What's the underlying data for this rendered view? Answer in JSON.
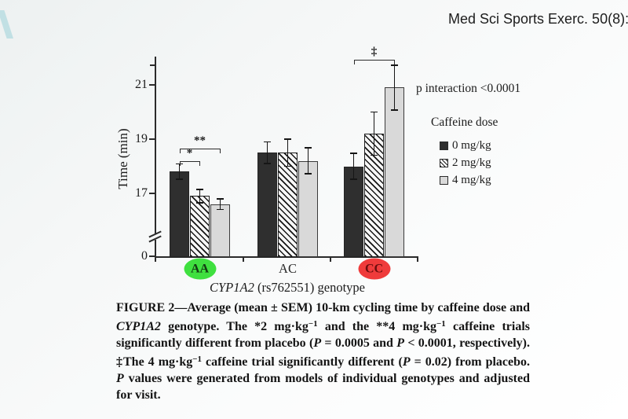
{
  "header": {
    "journal_ref": "Med Sci Sports Exerc. 50(8):"
  },
  "colors": {
    "bar_dark": "#2f2f2f",
    "bar_light": "#d9d9d9",
    "hatch_foreground": "#161616",
    "highlight_green": "#3fe03f",
    "highlight_red": "#ef3b3b",
    "corner_accent": "#b9dde2",
    "axis": "#2b2b2b"
  },
  "chart_data": {
    "type": "bar",
    "categories": [
      "AA",
      "AC",
      "CC"
    ],
    "series": [
      {
        "name": "0 mg/kg",
        "style": "solid-dark",
        "values": [
          17.8,
          18.5,
          18.0
        ],
        "sem": [
          0.3,
          0.42,
          0.5
        ]
      },
      {
        "name": "2 mg/kg",
        "style": "hatched",
        "values": [
          16.9,
          18.5,
          19.2
        ],
        "sem": [
          0.27,
          0.52,
          0.82
        ]
      },
      {
        "name": "4 mg/kg",
        "style": "light",
        "values": [
          16.6,
          18.2,
          20.9
        ],
        "sem": [
          0.22,
          0.5,
          0.85
        ]
      }
    ],
    "ylabel": "Time (min)",
    "xlabel": "CYP1A2 (rs762551) genotype",
    "xlabel_gene": "CYP1A2",
    "xlabel_rest": " (rs762551) genotype",
    "yticks": [
      {
        "label": "0",
        "value": 0
      },
      {
        "label": "17",
        "value": 17
      },
      {
        "label": "19",
        "value": 19
      },
      {
        "label": "21",
        "value": 21
      }
    ],
    "ylim": [
      0,
      22
    ],
    "axis_break": true,
    "grid": false,
    "legend_title": "Caffeine dose",
    "legend_position": "right",
    "p_interaction": "p interaction <0.0001",
    "brackets": [
      {
        "category": "AA",
        "bars": [
          0,
          1
        ],
        "label": "*"
      },
      {
        "category": "AA",
        "bars": [
          0,
          2
        ],
        "label": "**"
      },
      {
        "category": "CC",
        "bars": [
          0,
          2
        ],
        "label": "‡"
      }
    ],
    "category_highlights": [
      {
        "category": "AA",
        "color": "#3fe03f",
        "text_color": "#123a12"
      },
      {
        "category": "CC",
        "color": "#ef3b3b",
        "text_color": "#6b0e0e"
      }
    ]
  },
  "caption": {
    "segments": [
      {
        "t": "FIGURE 2—Average (mean ± SEM) 10-km cycling time by caffeine dose and "
      },
      {
        "t": "CYP1A2",
        "s": "i"
      },
      {
        "t": " genotype. The *2 mg·kg"
      },
      {
        "t": "−1",
        "s": "sup"
      },
      {
        "t": " and the **4 mg·kg"
      },
      {
        "t": "−1",
        "s": "sup"
      },
      {
        "t": " caffeine trials significantly different from placebo ("
      },
      {
        "t": "P",
        "s": "i"
      },
      {
        "t": " = 0.0005 and "
      },
      {
        "t": "P",
        "s": "i"
      },
      {
        "t": " < 0.0001, respectively). ‡The 4 mg·kg"
      },
      {
        "t": "−1",
        "s": "sup"
      },
      {
        "t": " caffeine trial significantly different ("
      },
      {
        "t": "P",
        "s": "i"
      },
      {
        "t": " = 0.02) from placebo. "
      },
      {
        "t": "P",
        "s": "i"
      },
      {
        "t": " values were generated from models of individual genotypes and adjusted for visit."
      }
    ]
  }
}
